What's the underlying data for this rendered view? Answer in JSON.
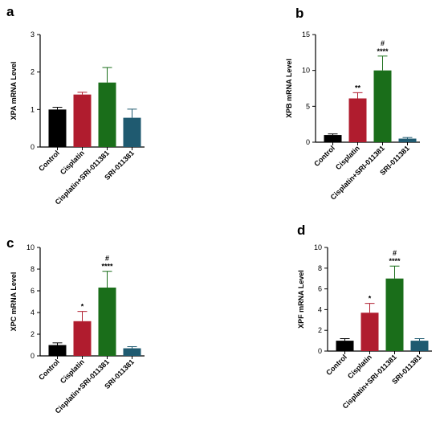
{
  "chart_data": [
    {
      "type": "bar",
      "panel": "a",
      "ylabel": "XPA mRNA Level",
      "categories": [
        "Control",
        "Cisplatin",
        "Cisplatin+SRI-011381",
        "SRI-011381"
      ],
      "values": [
        1.0,
        1.4,
        1.72,
        0.78
      ],
      "errors": [
        0.06,
        0.06,
        0.4,
        0.23
      ],
      "colors": [
        "#000000",
        "#b01c2e",
        "#1a6e1a",
        "#1f5a70"
      ],
      "annotations": [
        [],
        [],
        [],
        []
      ],
      "ylim": [
        0,
        3
      ],
      "yticks": [
        0,
        1,
        2,
        3
      ]
    },
    {
      "type": "bar",
      "panel": "b",
      "ylabel": "XPB mRNA Level",
      "categories": [
        "Control",
        "Cisplatin",
        "Cisplatin+SRI-011381",
        "SRI-011381"
      ],
      "values": [
        1.0,
        6.1,
        10.0,
        0.5
      ],
      "errors": [
        0.15,
        0.8,
        2.0,
        0.15
      ],
      "colors": [
        "#000000",
        "#b01c2e",
        "#1a6e1a",
        "#1f5a70"
      ],
      "annotations": [
        [],
        [
          "**"
        ],
        [
          "#",
          "****"
        ],
        []
      ],
      "ylim": [
        0,
        15
      ],
      "yticks": [
        0,
        5,
        10,
        15
      ]
    },
    {
      "type": "bar",
      "panel": "c",
      "ylabel": "XPC mRNA Level",
      "categories": [
        "Control",
        "Cisplatin",
        "Cisplatin+SRI-011381",
        "SRI-011381"
      ],
      "values": [
        1.0,
        3.2,
        6.3,
        0.7
      ],
      "errors": [
        0.2,
        0.9,
        1.5,
        0.15
      ],
      "colors": [
        "#000000",
        "#b01c2e",
        "#1a6e1a",
        "#1f5a70"
      ],
      "annotations": [
        [],
        [
          "*"
        ],
        [
          "#",
          "****"
        ],
        []
      ],
      "ylim": [
        0,
        10
      ],
      "yticks": [
        0,
        2,
        4,
        6,
        8,
        10
      ]
    },
    {
      "type": "bar",
      "panel": "d",
      "ylabel": "XPF mRNA Level",
      "categories": [
        "Control",
        "Cisplatin",
        "Cisplatin+SRI-011381",
        "SRI-011381"
      ],
      "values": [
        1.0,
        3.7,
        7.0,
        1.0
      ],
      "errors": [
        0.2,
        0.9,
        1.2,
        0.2
      ],
      "colors": [
        "#000000",
        "#b01c2e",
        "#1a6e1a",
        "#1f5a70"
      ],
      "annotations": [
        [],
        [
          "*"
        ],
        [
          "#",
          "****"
        ],
        []
      ],
      "ylim": [
        0,
        10
      ],
      "yticks": [
        0,
        2,
        4,
        6,
        8,
        10
      ]
    }
  ]
}
